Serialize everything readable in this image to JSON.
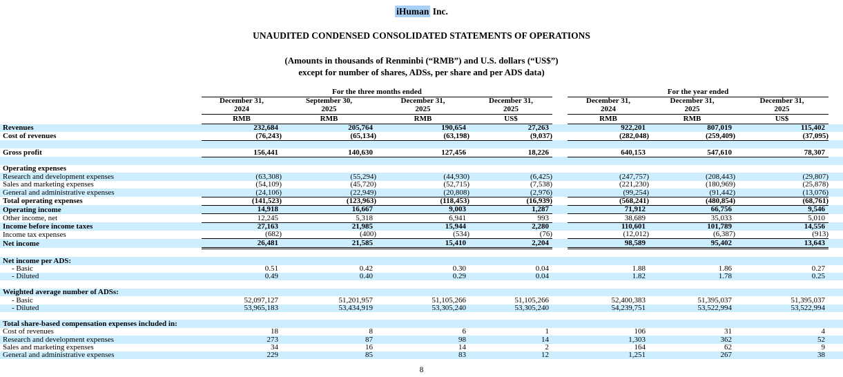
{
  "document": {
    "company_highlighted": "iHuman",
    "company_suffix": " Inc.",
    "title": "UNAUDITED CONDENSED CONSOLIDATED STATEMENTS OF OPERATIONS",
    "subtitle_line1": "(Amounts in thousands of Renminbi (“RMB”) and U.S. dollars (“US$”)",
    "subtitle_line2": "except for number of shares, ADSs, per share and per ADS data)",
    "page_number": "8"
  },
  "colors": {
    "row_stripe": "#cceeff",
    "text_highlight": "#a9d1f7"
  },
  "table": {
    "column_groups": [
      {
        "label": "For the three months ended",
        "columns": 4
      },
      {
        "label": "For the year ended",
        "columns": 3
      }
    ],
    "columns": [
      {
        "date": "December 31,",
        "year": "2024",
        "currency": "RMB"
      },
      {
        "date": "September 30,",
        "year": "2025",
        "currency": "RMB"
      },
      {
        "date": "December 31,",
        "year": "2025",
        "currency": "RMB"
      },
      {
        "date": "December 31,",
        "year": "2025",
        "currency": "US$"
      },
      {
        "date": "December 31,",
        "year": "2024",
        "currency": "RMB"
      },
      {
        "date": "December 31,",
        "year": "2025",
        "currency": "RMB"
      },
      {
        "date": "December 31,",
        "year": "2025",
        "currency": "US$"
      }
    ],
    "rows": [
      {
        "label": "Revenues",
        "bold": true,
        "shaded": true,
        "values": [
          "232,684",
          "205,764",
          "190,654",
          "27,263",
          "922,201",
          "807,019",
          "115,402"
        ]
      },
      {
        "label": "Cost of revenues",
        "bold": true,
        "shaded": false,
        "underline": "single",
        "values": [
          "(76,243)",
          "(65,134)",
          "(63,198)",
          "(9,037)",
          "(282,048)",
          "(259,409)",
          "(37,095)"
        ]
      },
      {
        "spacer": true,
        "shaded": true
      },
      {
        "label": "Gross profit",
        "bold": true,
        "shaded": false,
        "underline": "single",
        "values": [
          "156,441",
          "140,630",
          "127,456",
          "18,226",
          "640,153",
          "547,610",
          "78,307"
        ]
      },
      {
        "spacer": true,
        "shaded": true
      },
      {
        "label": "Operating expenses",
        "bold": true,
        "shaded": false,
        "values": []
      },
      {
        "label": "Research and development expenses",
        "shaded": true,
        "values": [
          "(63,308)",
          "(55,294)",
          "(44,930)",
          "(6,425)",
          "(247,757)",
          "(208,443)",
          "(29,807)"
        ]
      },
      {
        "label": "Sales and marketing expenses",
        "shaded": false,
        "values": [
          "(54,109)",
          "(45,720)",
          "(52,715)",
          "(7,538)",
          "(221,230)",
          "(180,969)",
          "(25,878)"
        ]
      },
      {
        "label": "General and administrative expenses",
        "shaded": true,
        "underline": "single",
        "values": [
          "(24,106)",
          "(22,949)",
          "(20,808)",
          "(2,976)",
          "(99,254)",
          "(91,442)",
          "(13,076)"
        ]
      },
      {
        "label": "Total operating expenses",
        "bold": true,
        "shaded": false,
        "underline": "single",
        "values": [
          "(141,523)",
          "(123,963)",
          "(118,453)",
          "(16,939)",
          "(568,241)",
          "(480,854)",
          "(68,761)"
        ]
      },
      {
        "label": "Operating income",
        "bold": true,
        "shaded": true,
        "underline": "single",
        "values": [
          "14,918",
          "16,667",
          "9,003",
          "1,287",
          "71,912",
          "66,756",
          "9,546"
        ]
      },
      {
        "label": "Other income, net",
        "shaded": false,
        "underline": "single",
        "values": [
          "12,245",
          "5,318",
          "6,941",
          "993",
          "38,689",
          "35,033",
          "5,010"
        ]
      },
      {
        "label": "Income before income taxes",
        "bold": true,
        "shaded": true,
        "values": [
          "27,163",
          "21,985",
          "15,944",
          "2,280",
          "110,601",
          "101,789",
          "14,556"
        ]
      },
      {
        "label": "Income tax expenses",
        "shaded": false,
        "underline": "single",
        "values": [
          "(682)",
          "(400)",
          "(534)",
          "(76)",
          "(12,012)",
          "(6,387)",
          "(913)"
        ]
      },
      {
        "label": "Net income",
        "bold": true,
        "shaded": true,
        "underline": "double",
        "values": [
          "26,481",
          "21,585",
          "15,410",
          "2,204",
          "98,589",
          "95,402",
          "13,643"
        ]
      },
      {
        "spacer": true,
        "shaded": false
      },
      {
        "label": "Net income per ADS:",
        "bold": true,
        "shaded": true,
        "values": []
      },
      {
        "label": "- Basic",
        "indent": true,
        "shaded": false,
        "values": [
          "0.51",
          "0.42",
          "0.30",
          "0.04",
          "1.88",
          "1.86",
          "0.27"
        ]
      },
      {
        "label": "- Diluted",
        "indent": true,
        "shaded": true,
        "values": [
          "0.49",
          "0.40",
          "0.29",
          "0.04",
          "1.82",
          "1.78",
          "0.25"
        ]
      },
      {
        "spacer": true,
        "shaded": false
      },
      {
        "label": "Weighted average number of ADSs:",
        "bold": true,
        "shaded": true,
        "values": []
      },
      {
        "label": "- Basic",
        "indent": true,
        "shaded": false,
        "values": [
          "52,097,127",
          "51,201,957",
          "51,105,266",
          "51,105,266",
          "52,400,383",
          "51,395,037",
          "51,395,037"
        ]
      },
      {
        "label": "- Diluted",
        "indent": true,
        "shaded": true,
        "values": [
          "53,965,183",
          "53,434,919",
          "53,305,240",
          "53,305,240",
          "54,239,751",
          "53,522,994",
          "53,522,994"
        ]
      },
      {
        "spacer": true,
        "shaded": false
      },
      {
        "label": "Total share-based compensation expenses included in:",
        "bold": true,
        "shaded": true,
        "values": []
      },
      {
        "label": "Cost of revenues",
        "shaded": false,
        "values": [
          "18",
          "8",
          "6",
          "1",
          "106",
          "31",
          "4"
        ]
      },
      {
        "label": "Research and development expenses",
        "shaded": true,
        "values": [
          "273",
          "87",
          "98",
          "14",
          "1,303",
          "362",
          "52"
        ]
      },
      {
        "label": "Sales and marketing expenses",
        "shaded": false,
        "values": [
          "34",
          "16",
          "14",
          "2",
          "164",
          "62",
          "9"
        ]
      },
      {
        "label": "General and administrative expenses",
        "shaded": true,
        "values": [
          "229",
          "85",
          "83",
          "12",
          "1,251",
          "267",
          "38"
        ]
      }
    ]
  }
}
